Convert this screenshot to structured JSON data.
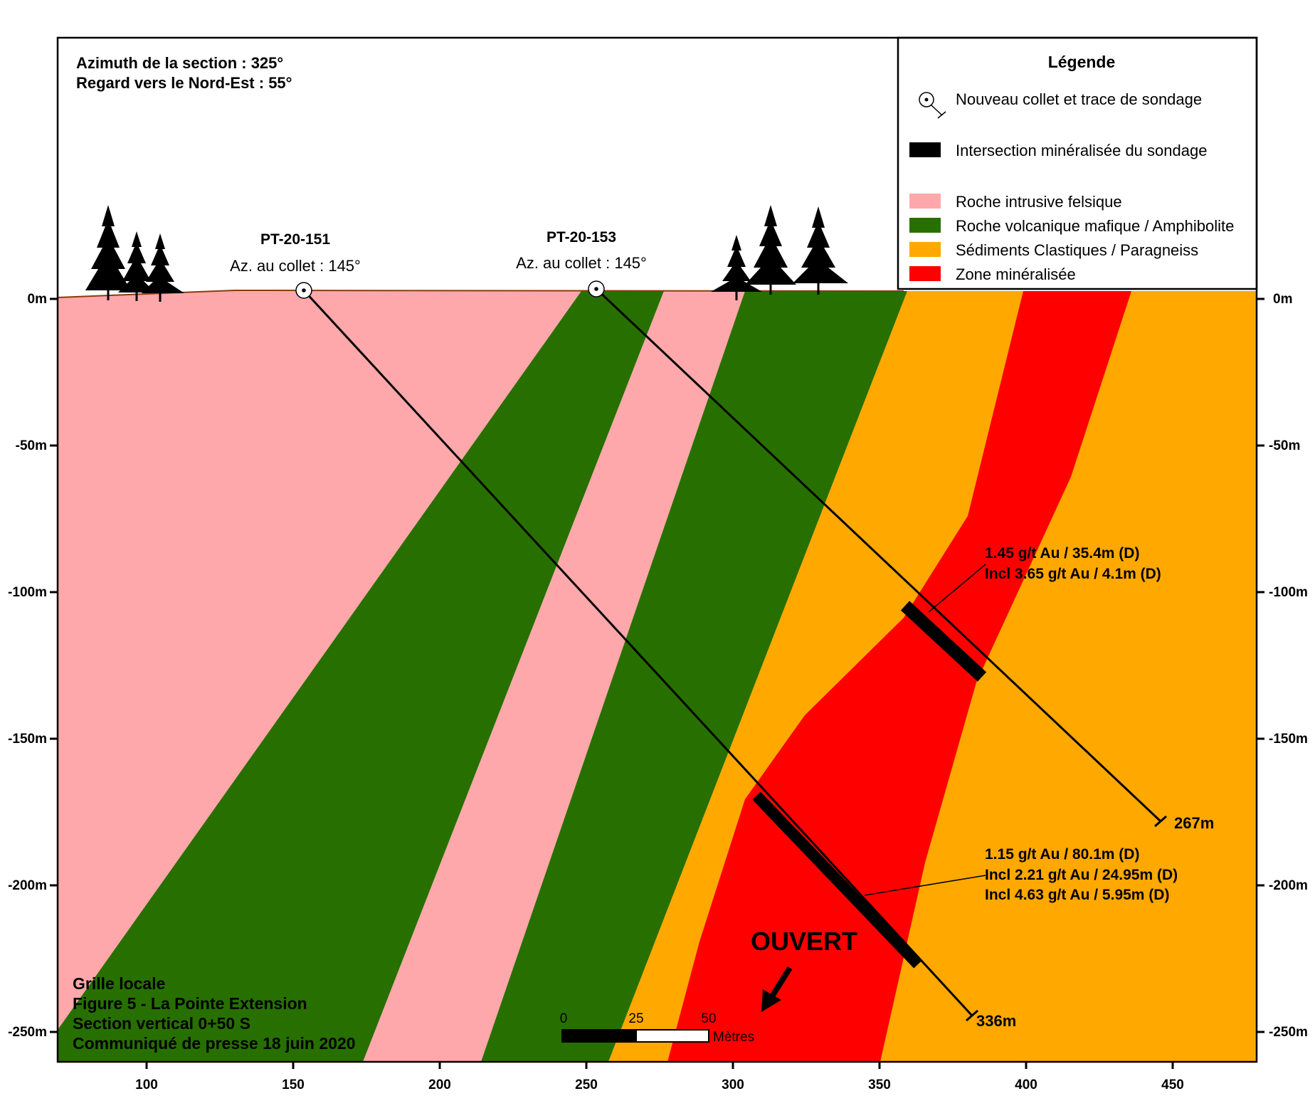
{
  "header": {
    "line1": "Azimuth de la section : 325°",
    "line2": "Regard vers le Nord-Est : 55°"
  },
  "legend": {
    "title": "Légende",
    "items": [
      {
        "label": "Nouveau collet et trace de sondage",
        "kind": "collar"
      },
      {
        "label": "Intersection minéralisée du sondage",
        "kind": "bar"
      },
      {
        "label": "Roche intrusive felsique",
        "kind": "swatch",
        "color": "#ffa8ab"
      },
      {
        "label": "Roche volcanique mafique / Amphibolite",
        "kind": "swatch",
        "color": "#277000"
      },
      {
        "label": "Sédiments Clastiques / Paragneiss",
        "kind": "swatch",
        "color": "#ffa800"
      },
      {
        "label": "Zone minéralisée",
        "kind": "swatch",
        "color": "#ff0000"
      }
    ]
  },
  "holes": [
    {
      "name": "PT-20-151",
      "azimuth": "Az. au collet : 145°",
      "end_depth": "336m",
      "intercepts": [
        "1.15 g/t Au / 80.1m (D)",
        "Incl 2.21 g/t Au / 24.95m (D)",
        "Incl 4.63 g/t Au / 5.95m (D)"
      ]
    },
    {
      "name": "PT-20-153",
      "azimuth": "Az. au collet : 145°",
      "end_depth": "267m",
      "intercepts": [
        "1.45 g/t Au / 35.4m (D)",
        "Incl 3.65 g/t Au / 4.1m (D)"
      ]
    }
  ],
  "open_label": "OUVERT",
  "scale_bar": {
    "ticks": [
      "0",
      "25",
      "50"
    ],
    "unit": "Mètres"
  },
  "footer": {
    "lines": [
      "Grille locale",
      "Figure 5 - La Pointe Extension",
      "Section vertical 0+50 S",
      "Communiqué de presse 18 juin 2020"
    ]
  },
  "axes": {
    "x_ticks": [
      "100",
      "150",
      "200",
      "250",
      "300",
      "350",
      "400",
      "450"
    ],
    "y_ticks_left": [
      "0m",
      "-50m",
      "-100m",
      "-150m",
      "-200m",
      "-250m"
    ],
    "y_ticks_right": [
      "0m",
      "-50m",
      "-100m",
      "-150m",
      "-200m",
      "-250m"
    ]
  },
  "colors": {
    "felsic": "#ffa8ab",
    "mafic": "#277000",
    "sediment": "#ffa800",
    "mineralized": "#ff0000",
    "topography": "#8b3a0e"
  }
}
